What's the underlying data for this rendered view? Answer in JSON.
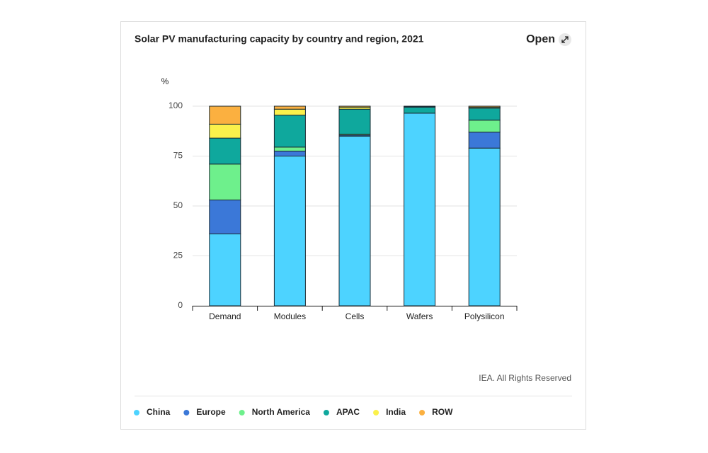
{
  "ui": {
    "open_button": "Open"
  },
  "chart_data": {
    "type": "stacked-bar",
    "title": "Solar PV manufacturing capacity by country and region, 2021",
    "y_label": "%",
    "source": "IEA. All Rights Reserved",
    "categories": [
      "Demand",
      "Modules",
      "Cells",
      "Wafers",
      "Polysilicon"
    ],
    "series": [
      {
        "name": "China",
        "color": "#4dd3ff",
        "values": [
          36,
          75,
          85,
          96.5,
          79
        ]
      },
      {
        "name": "Europe",
        "color": "#3b78d8",
        "values": [
          17,
          2.5,
          0.5,
          0,
          8
        ]
      },
      {
        "name": "North America",
        "color": "#6ef08c",
        "values": [
          18,
          2,
          0.5,
          0,
          6
        ]
      },
      {
        "name": "APAC",
        "color": "#0fa89d",
        "values": [
          13,
          16,
          12.5,
          3,
          6
        ]
      },
      {
        "name": "India",
        "color": "#fbf14b",
        "values": [
          7,
          3,
          1,
          0.3,
          0.5
        ]
      },
      {
        "name": "ROW",
        "color": "#fbb040",
        "values": [
          9,
          1.5,
          0.5,
          0.2,
          0.5
        ]
      }
    ],
    "ylim": [
      0,
      100
    ],
    "yticks": [
      0,
      25,
      50,
      75,
      100
    ],
    "grid": true
  }
}
